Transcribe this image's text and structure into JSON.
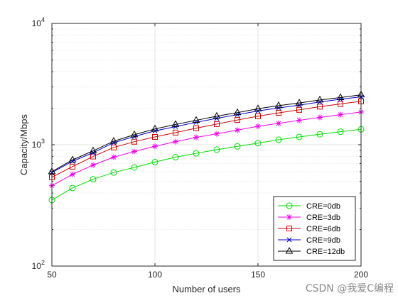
{
  "chart_data": {
    "type": "line",
    "title": "",
    "xlabel": "Number of users",
    "ylabel": "Capacity/Mbps",
    "xlim": [
      50,
      200
    ],
    "ylim": [
      100,
      10000
    ],
    "yscale": "log",
    "x_ticks": [
      50,
      100,
      150,
      200
    ],
    "y_ticks": [
      {
        "value": 100,
        "base": "10",
        "exp": "2"
      },
      {
        "value": 1000,
        "base": "10",
        "exp": "3"
      },
      {
        "value": 10000,
        "base": "10",
        "exp": "4"
      }
    ],
    "grid": true,
    "legend_position": "bottom-right",
    "x": [
      50,
      60,
      70,
      80,
      90,
      100,
      110,
      120,
      130,
      140,
      150,
      160,
      170,
      180,
      190,
      200
    ],
    "series": [
      {
        "name": "CRE=0db",
        "color": "#00dd00",
        "marker": "circle",
        "values": [
          350,
          440,
          520,
          590,
          650,
          720,
          790,
          850,
          910,
          970,
          1030,
          1100,
          1160,
          1220,
          1280,
          1340
        ]
      },
      {
        "name": "CRE=3db",
        "color": "#ee00ee",
        "marker": "star",
        "values": [
          460,
          570,
          680,
          790,
          880,
          970,
          1060,
          1150,
          1230,
          1320,
          1420,
          1500,
          1590,
          1680,
          1770,
          1860
        ]
      },
      {
        "name": "CRE=6db",
        "color": "#cc0000",
        "marker": "square",
        "values": [
          540,
          660,
          800,
          950,
          1060,
          1160,
          1260,
          1370,
          1480,
          1600,
          1720,
          1830,
          1940,
          2060,
          2170,
          2280
        ]
      },
      {
        "name": "CRE=9db",
        "color": "#0000cc",
        "marker": "x",
        "values": [
          590,
          730,
          860,
          1040,
          1170,
          1300,
          1410,
          1530,
          1650,
          1770,
          1900,
          2010,
          2120,
          2250,
          2370,
          2480
        ]
      },
      {
        "name": "CRE=12db",
        "color": "#000000",
        "marker": "triangle",
        "values": [
          600,
          750,
          890,
          1070,
          1210,
          1350,
          1470,
          1590,
          1720,
          1840,
          1980,
          2100,
          2210,
          2340,
          2450,
          2580
        ]
      }
    ]
  },
  "watermark": "CSDN @我爱C编程"
}
